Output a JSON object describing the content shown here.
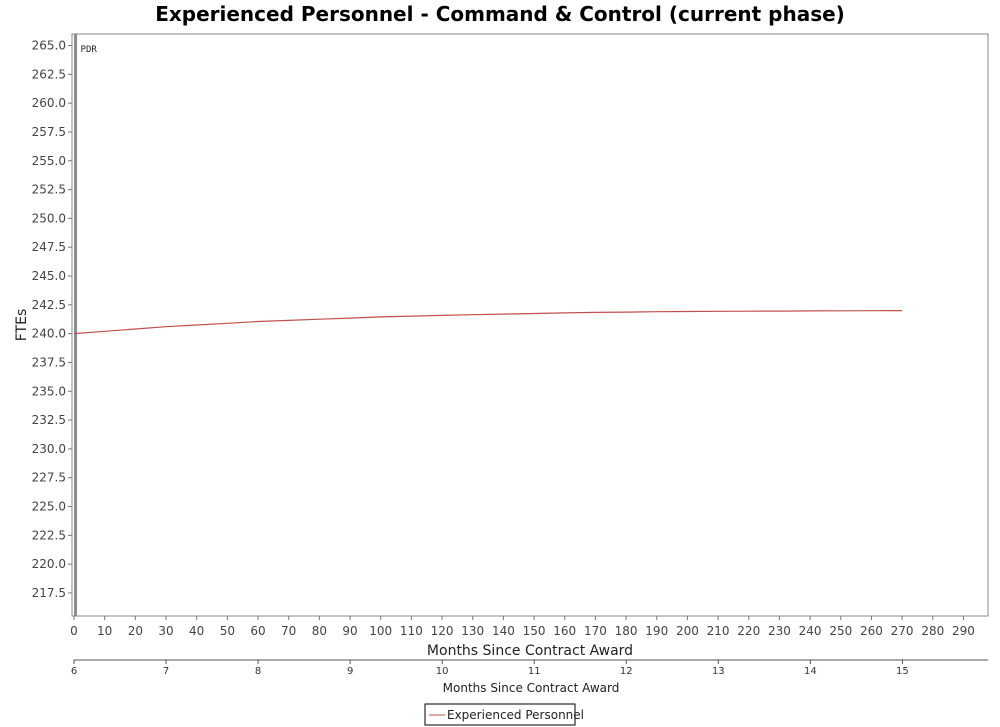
{
  "chart_data": {
    "type": "line",
    "title": "Experienced Personnel - Command & Control (current phase)",
    "xlabel": "Months Since Contract Award",
    "ylabel": "FTEs",
    "xlim": [
      0,
      298
    ],
    "ylim": [
      215.5,
      266.0
    ],
    "x_ticks": [
      0,
      10,
      20,
      30,
      40,
      50,
      60,
      70,
      80,
      90,
      100,
      110,
      120,
      130,
      140,
      150,
      160,
      170,
      180,
      190,
      200,
      210,
      220,
      230,
      240,
      250,
      260,
      270,
      280,
      290
    ],
    "y_ticks": [
      217.5,
      220.0,
      222.5,
      225.0,
      227.5,
      230.0,
      232.5,
      235.0,
      237.5,
      240.0,
      242.5,
      245.0,
      247.5,
      250.0,
      252.5,
      255.0,
      257.5,
      260.0,
      262.5,
      265.0
    ],
    "secondary_x_axis": {
      "label": "Months Since Contract Award",
      "ticks": [
        6,
        7,
        8,
        9,
        10,
        11,
        12,
        13,
        14,
        15
      ],
      "xlim": [
        6,
        15.93
      ]
    },
    "marker": {
      "label": "PDR",
      "x": 0.5
    },
    "series": [
      {
        "name": "Experienced Personnel",
        "color": "#c0504d",
        "x": [
          0,
          10,
          20,
          30,
          40,
          50,
          60,
          70,
          80,
          90,
          100,
          110,
          120,
          130,
          140,
          150,
          160,
          170,
          180,
          190,
          200,
          210,
          220,
          230,
          240,
          250,
          260,
          270
        ],
        "y": [
          240.0,
          240.2,
          240.4,
          240.6,
          240.75,
          240.9,
          241.05,
          241.15,
          241.25,
          241.35,
          241.45,
          241.52,
          241.58,
          241.64,
          241.7,
          241.75,
          241.8,
          241.84,
          241.87,
          241.9,
          241.92,
          241.94,
          241.95,
          241.96,
          241.97,
          241.98,
          241.99,
          242.0
        ]
      }
    ],
    "legend": "bottom-center",
    "grid": false
  }
}
